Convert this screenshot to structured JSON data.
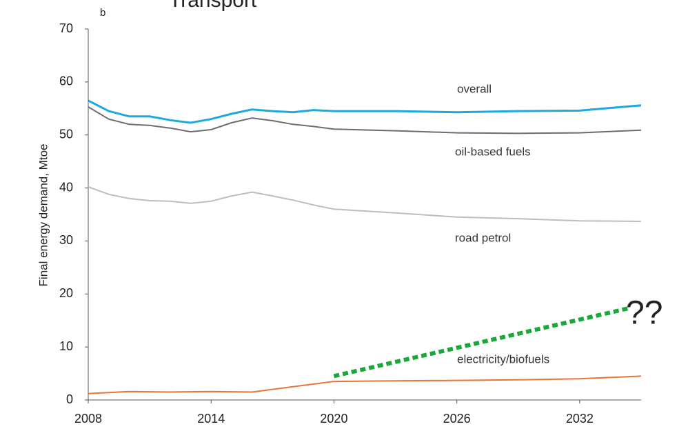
{
  "chart_data": {
    "type": "line",
    "title": "Transport",
    "panel_label": "b",
    "y_label": "Final energy demand, Mtoe",
    "annotation": "??",
    "xlim": [
      2008,
      2035
    ],
    "xticks": [
      2008,
      2014,
      2020,
      2026,
      2032
    ],
    "ylim": [
      0,
      70
    ],
    "yticks": [
      0,
      10,
      20,
      30,
      40,
      50,
      60,
      70
    ],
    "series": [
      {
        "name": "overall",
        "color": "#1ea8e0",
        "x": [
          2008,
          2009,
          2010,
          2011,
          2012,
          2013,
          2014,
          2015,
          2016,
          2017,
          2018,
          2019,
          2020,
          2023,
          2026,
          2029,
          2032,
          2035
        ],
        "values": [
          56.5,
          54.5,
          53.5,
          53.5,
          52.8,
          52.3,
          53,
          54,
          54.8,
          54.5,
          54.3,
          54.7,
          54.5,
          54.5,
          54.3,
          54.5,
          54.6,
          55.6
        ]
      },
      {
        "name": "oil-based fuels",
        "color": "#6d6d6d",
        "x": [
          2008,
          2009,
          2010,
          2011,
          2012,
          2013,
          2014,
          2015,
          2016,
          2017,
          2018,
          2019,
          2020,
          2023,
          2026,
          2029,
          2032,
          2035
        ],
        "values": [
          55.3,
          53,
          52,
          51.8,
          51.3,
          50.6,
          51,
          52.3,
          53.2,
          52.7,
          52,
          51.6,
          51.1,
          50.8,
          50.4,
          50.3,
          50.4,
          50.9
        ]
      },
      {
        "name": "road petrol",
        "color": "#bdbdbd",
        "x": [
          2008,
          2009,
          2010,
          2011,
          2012,
          2013,
          2014,
          2015,
          2016,
          2017,
          2018,
          2019,
          2020,
          2023,
          2026,
          2029,
          2032,
          2035
        ],
        "values": [
          40.2,
          38.8,
          38,
          37.6,
          37.5,
          37.1,
          37.5,
          38.5,
          39.2,
          38.5,
          37.7,
          36.8,
          36,
          35.3,
          34.5,
          34.2,
          33.8,
          33.7
        ]
      },
      {
        "name": "electricity/biofuels",
        "color": "#e8743b",
        "x": [
          2008,
          2010,
          2012,
          2014,
          2016,
          2018,
          2020,
          2023,
          2026,
          2029,
          2032,
          2035
        ],
        "values": [
          1.2,
          1.6,
          1.5,
          1.6,
          1.5,
          2.5,
          3.5,
          3.6,
          3.7,
          3.8,
          4,
          4.5
        ]
      }
    ],
    "projection": {
      "color": "#1aa83a",
      "x": [
        2020,
        2034.4
      ],
      "values": [
        4.5,
        17.3
      ]
    }
  }
}
